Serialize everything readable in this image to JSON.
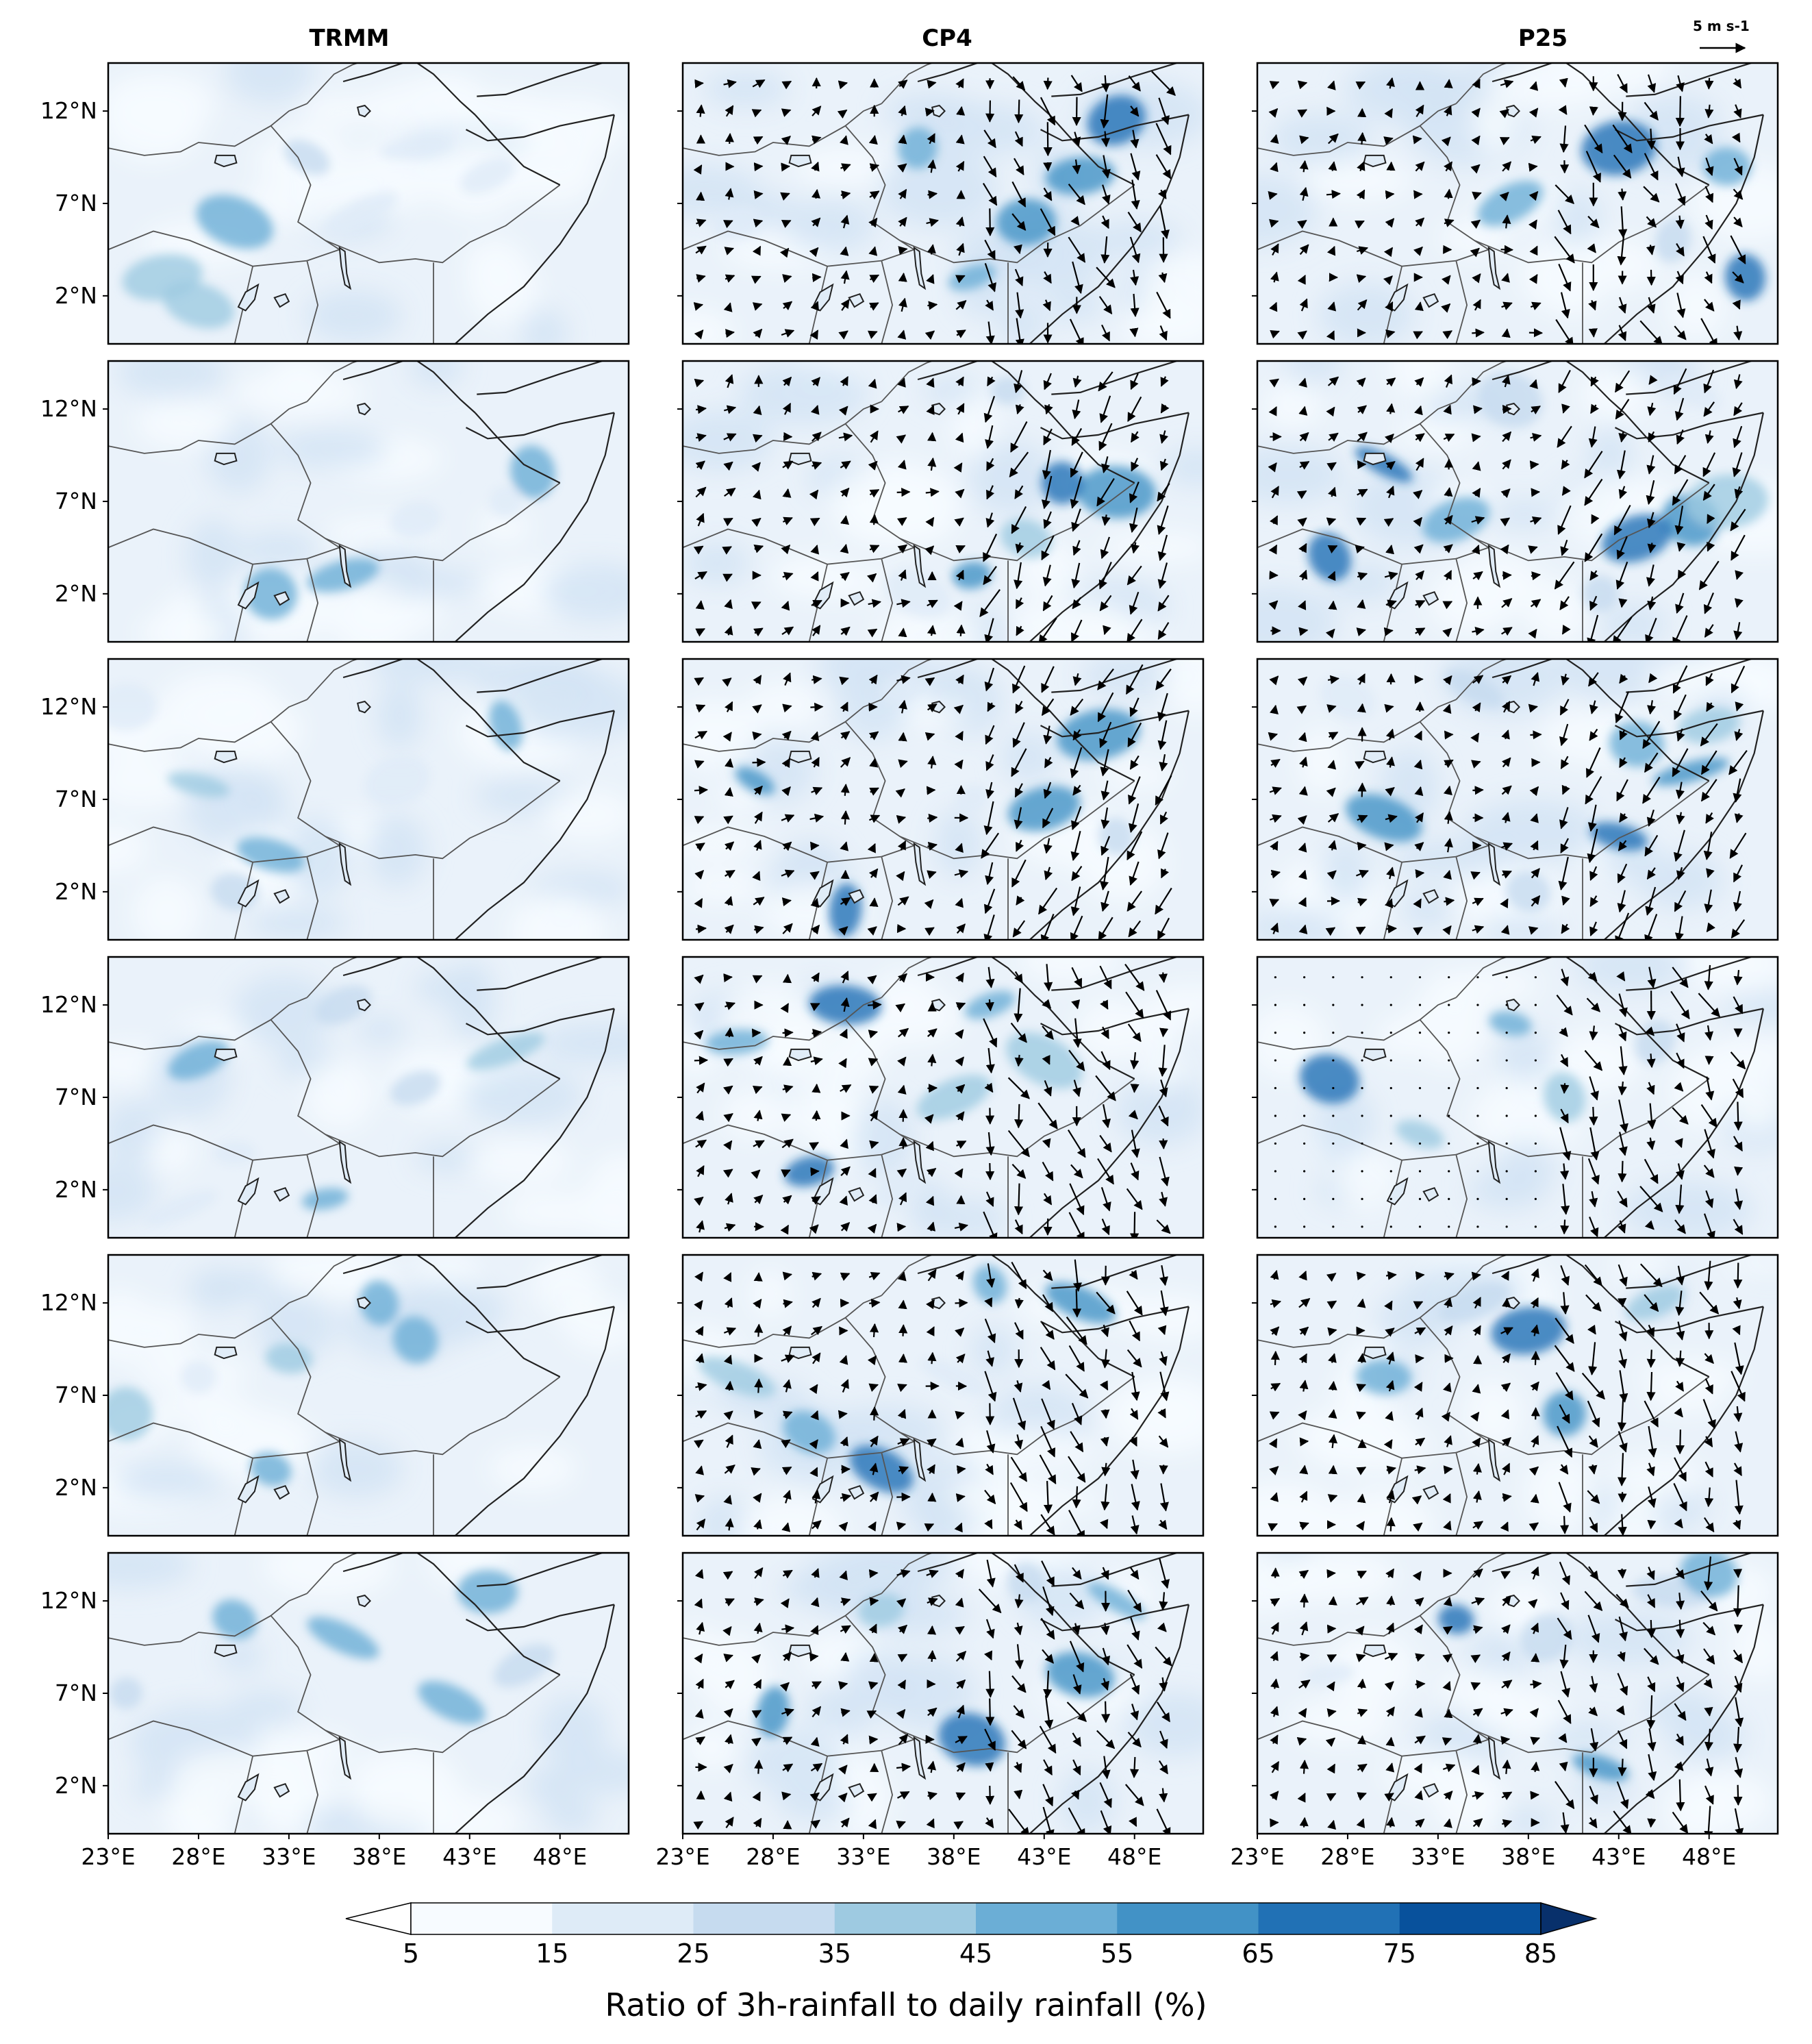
{
  "figure": {
    "columns": [
      {
        "id": "trmm",
        "title": "TRMM",
        "has_wind": false
      },
      {
        "id": "cp4",
        "title": "CP4",
        "has_wind": true
      },
      {
        "id": "p25",
        "title": "P25",
        "has_wind": true
      }
    ],
    "rows": 6,
    "reference_vector_label": "5 m s-1",
    "x_ticks": [
      "23°E",
      "28°E",
      "33°E",
      "38°E",
      "43°E",
      "48°E"
    ],
    "y_ticks": [
      "12°N",
      "7°N",
      "2°N"
    ],
    "colorbar": {
      "ticks": [
        "5",
        "15",
        "25",
        "35",
        "45",
        "55",
        "65",
        "75",
        "85"
      ],
      "label": "Ratio of 3h-rainfall to daily rainfall (%)",
      "colors": [
        "#f7fbff",
        "#deebf7",
        "#c6dbef",
        "#9ecae1",
        "#6baed6",
        "#4292c6",
        "#2171b5",
        "#08519c",
        "#08306b"
      ],
      "extend": "both"
    }
  }
}
